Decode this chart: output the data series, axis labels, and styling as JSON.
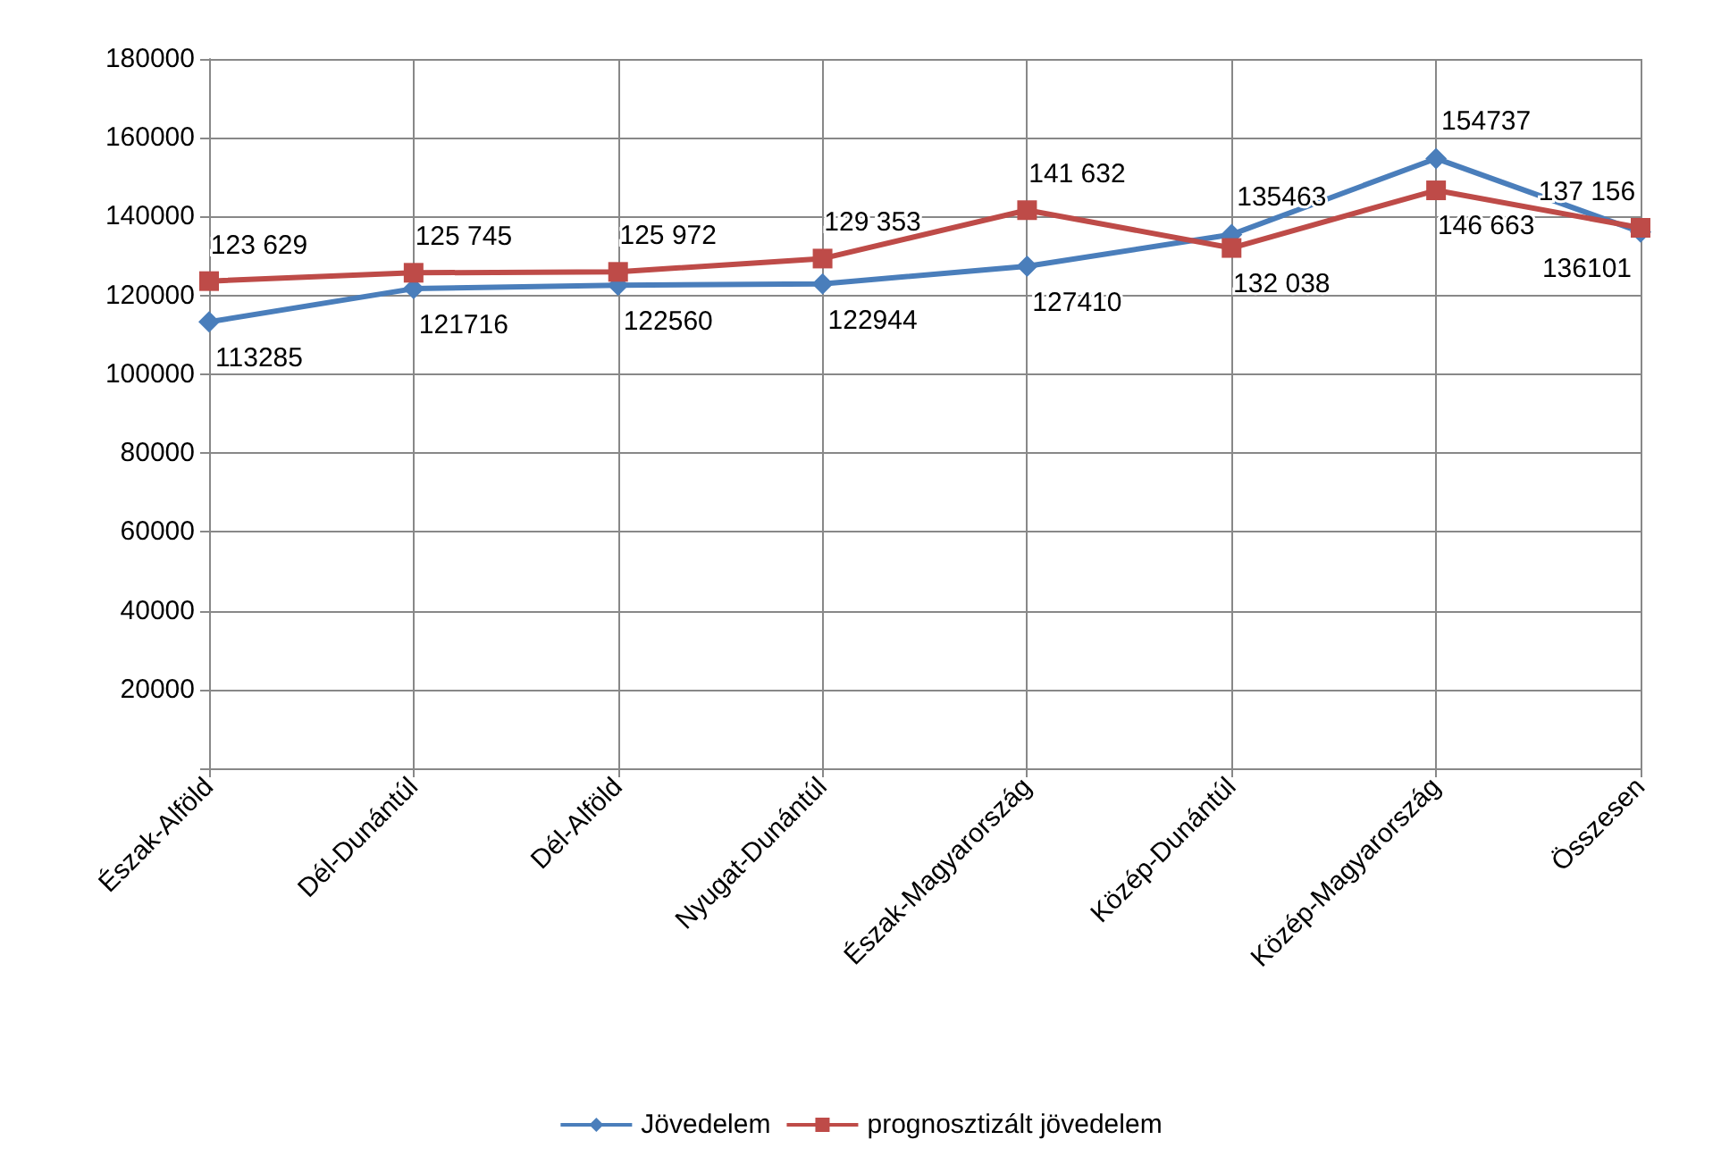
{
  "chart_data": {
    "type": "line",
    "categories": [
      "Észak-Alföld",
      "Dél-Dunántúl",
      "Dél-Alföld",
      "Nyugat-Dunántúl",
      "Észak-Magyarország",
      "Közép-Dunántúl",
      "Közép-Magyarország",
      "Összesen"
    ],
    "series": [
      {
        "name": "Jövedelem",
        "color": "#4a7ebb",
        "marker": "diamond",
        "values": [
          113285,
          121716,
          122560,
          122944,
          127410,
          135463,
          154737,
          136101
        ],
        "value_labels": [
          "113285",
          "121716",
          "122560",
          "122944",
          "127410",
          "135463",
          "154737",
          "136101"
        ]
      },
      {
        "name": "prognosztizált jövedelem",
        "color": "#be4b48",
        "marker": "square",
        "values": [
          123629,
          125745,
          125972,
          129353,
          141632,
          132038,
          146663,
          137156
        ],
        "value_labels": [
          "123 629",
          "125 745",
          "125 972",
          "129 353",
          "141 632",
          "132 038",
          "146 663",
          "137 156"
        ]
      }
    ],
    "ylim": [
      0,
      180000
    ],
    "yticks": [
      {
        "value": 0,
        "label": null
      },
      20000,
      40000,
      60000,
      80000,
      100000,
      120000,
      140000,
      160000,
      180000
    ],
    "grid": true,
    "legend": "bottom"
  }
}
